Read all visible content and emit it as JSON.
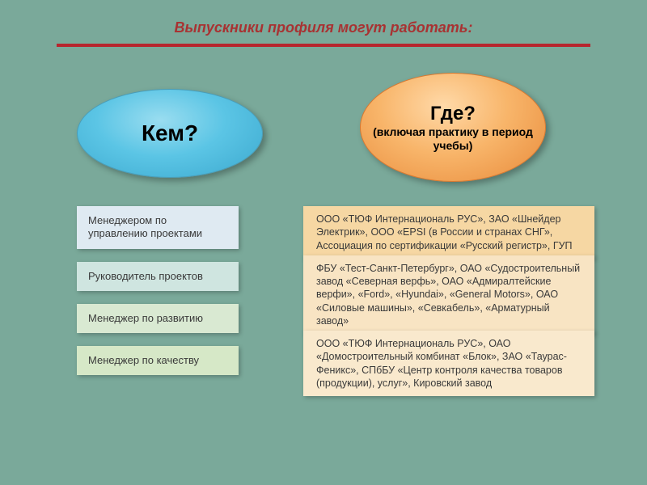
{
  "title": "Выпускники профиля могут работать:",
  "colors": {
    "background": "#7aa99a",
    "title_color": "#a83232",
    "underline": "#b8252e"
  },
  "ellipse_left": {
    "main": "Кем?",
    "gradient": [
      "#9addf0",
      "#5bc5e5",
      "#3ba8ce"
    ]
  },
  "ellipse_right": {
    "main": "Где?",
    "sub": "(включая практику в период учебы)",
    "gradient": [
      "#ffd9a8",
      "#f8b56a",
      "#e88a3a"
    ]
  },
  "left_items": [
    {
      "text": "Менеджером по управлению проектами",
      "bg": "#dfeaf2"
    },
    {
      "text": "Руководитель проектов",
      "bg": "#cfe5e0"
    },
    {
      "text": "Менеджер по развитию",
      "bg": "#d9e9d2"
    },
    {
      "text": "Менеджер по качеству",
      "bg": "#d6e8c7"
    }
  ],
  "right_items": [
    {
      "text": "ООО «ТЮФ Интернациональ РУС», ЗАО «Шнейдер Электрик», ООО «EPSI (в России и странах СНГ», Ассоциация по сертификации «Русский регистр», ГУП",
      "bg": "#f6d7a3"
    },
    {
      "text": "ФБУ «Тест-Санкт-Петербург», ОАО «Судостроительный завод «Северная верфь», ОАО «Адмиралтейские верфи», «Ford», «Hyundai», «General Motors», ОАО «Силовые машины», «Севкабель», «Арматурный завод»",
      "bg": "#f8e4c3"
    },
    {
      "text": "ООО «ТЮФ Интернациональ РУС», ОАО «Домостроительный комбинат «Блок», ЗАО «Таурас-Феникс», СПбБУ «Центр контроля качества товаров (продукции), услуг», Кировский завод",
      "bg": "#f9e9cd"
    }
  ]
}
